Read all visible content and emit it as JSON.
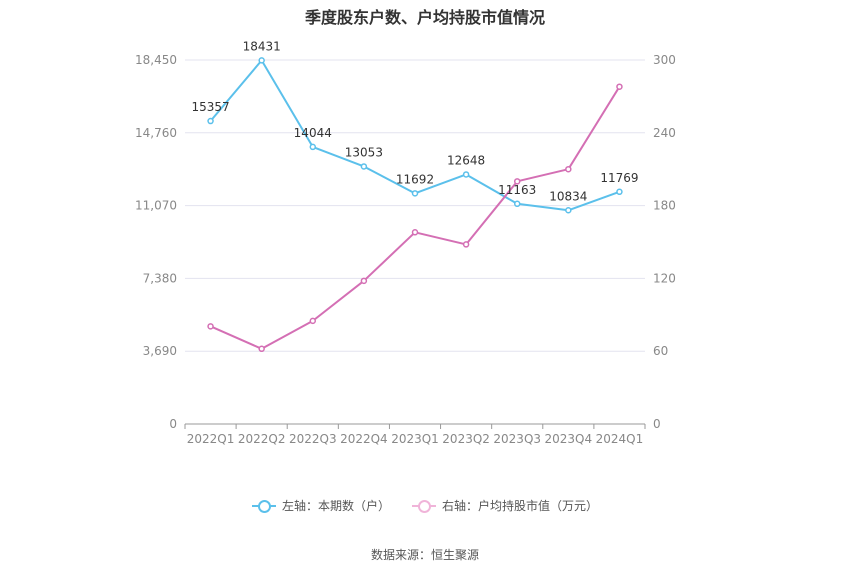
{
  "chart_data": {
    "type": "line",
    "title": "季度股东户数、户均持股市值情况",
    "categories": [
      "2022Q1",
      "2022Q2",
      "2022Q3",
      "2022Q4",
      "2023Q1",
      "2023Q2",
      "2023Q3",
      "2023Q4",
      "2024Q1"
    ],
    "left_axis": {
      "ticks": [
        "0",
        "3,690",
        "7,380",
        "11,070",
        "14,760",
        "18,450"
      ],
      "ylim": [
        0,
        18450
      ]
    },
    "right_axis": {
      "ticks": [
        "0",
        "60",
        "120",
        "180",
        "240",
        "300"
      ],
      "ylim": [
        0,
        300
      ]
    },
    "series": [
      {
        "name": "左轴：本期数（户）",
        "axis": "left",
        "color": "#5bc0eb",
        "values": [
          15357,
          18431,
          14044,
          13053,
          11692,
          12648,
          11163,
          10834,
          11769
        ],
        "labels_shown": true
      },
      {
        "name": "右轴：户均持股市值（万元）",
        "axis": "right",
        "color": "#d46fb4",
        "values": [
          80.5,
          62,
          85,
          118,
          158,
          148,
          200,
          210,
          278
        ],
        "labels_shown": false
      }
    ],
    "grid": true,
    "legend_position": "bottom"
  },
  "source": "数据来源：恒生聚源"
}
